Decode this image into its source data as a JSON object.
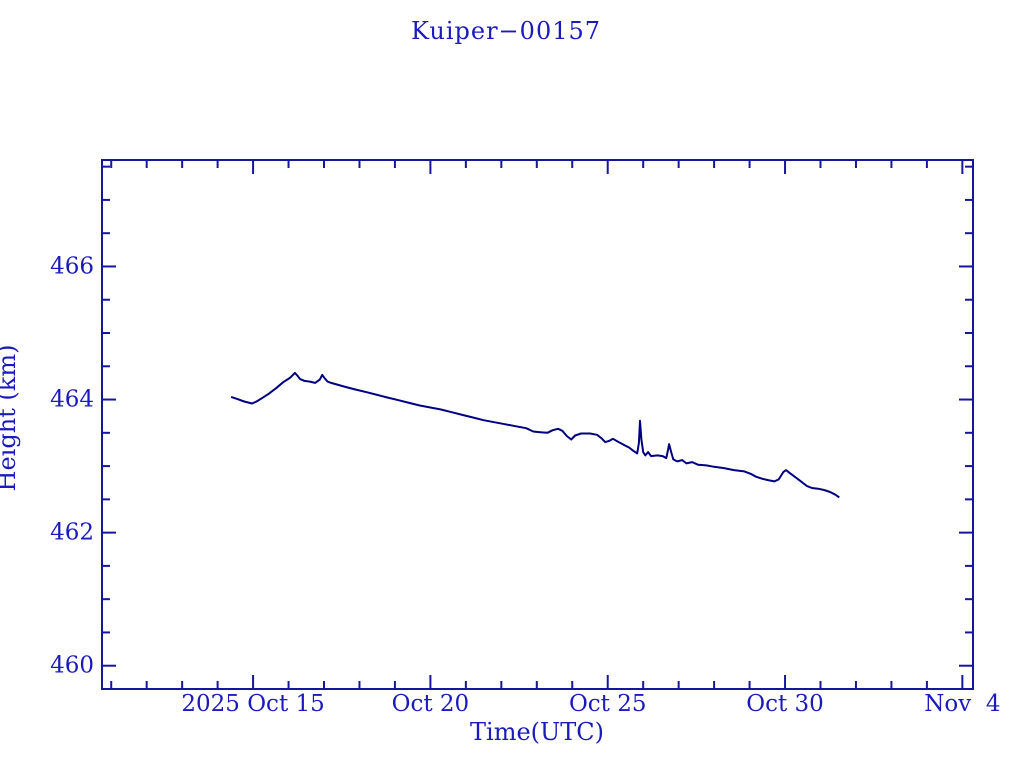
{
  "window": {
    "background_color": "#ffffff"
  },
  "chart_data": {
    "type": "line",
    "title": "Kuiper−00157",
    "xlabel": "Time(UTC)",
    "ylabel": "Height (km)",
    "x_encoding": "October 2025 day number (Nov 4 = 35)",
    "xlim": [
      10.74,
      35.3
    ],
    "ylim": [
      459.65,
      467.6
    ],
    "grid": false,
    "legend": "none",
    "x_major_ticks": [
      {
        "day": 15,
        "label": "2025 Oct 15"
      },
      {
        "day": 20,
        "label": "Oct 20"
      },
      {
        "day": 25,
        "label": "Oct 25"
      },
      {
        "day": 30,
        "label": "Oct 30"
      },
      {
        "day": 35,
        "label": "Nov  4"
      }
    ],
    "x_minor_tick_step_days": 1,
    "y_major_ticks": [
      {
        "value": 466,
        "label": "466"
      },
      {
        "value": 464,
        "label": "464"
      },
      {
        "value": 462,
        "label": "462"
      },
      {
        "value": 460,
        "label": "460"
      }
    ],
    "y_minor_tick_step_km": 0.5,
    "colors": {
      "text": "#1b1bbd",
      "axis": "#16169b",
      "line": "#000080",
      "background": "#ffffff"
    },
    "series": [
      {
        "name": "height",
        "points": [
          [
            14.38,
            464.04
          ],
          [
            14.55,
            464.01
          ],
          [
            14.75,
            463.97
          ],
          [
            14.97,
            463.94
          ],
          [
            15.1,
            463.97
          ],
          [
            15.25,
            464.02
          ],
          [
            15.45,
            464.09
          ],
          [
            15.65,
            464.17
          ],
          [
            15.85,
            464.26
          ],
          [
            16.05,
            464.33
          ],
          [
            16.18,
            464.4
          ],
          [
            16.25,
            464.36
          ],
          [
            16.32,
            464.31
          ],
          [
            16.45,
            464.28
          ],
          [
            16.6,
            464.27
          ],
          [
            16.75,
            464.25
          ],
          [
            16.88,
            464.3
          ],
          [
            16.95,
            464.37
          ],
          [
            17.02,
            464.32
          ],
          [
            17.1,
            464.27
          ],
          [
            17.2,
            464.25
          ],
          [
            17.4,
            464.22
          ],
          [
            17.6,
            464.19
          ],
          [
            17.9,
            464.15
          ],
          [
            18.2,
            464.11
          ],
          [
            18.5,
            464.07
          ],
          [
            18.8,
            464.03
          ],
          [
            19.1,
            463.99
          ],
          [
            19.4,
            463.95
          ],
          [
            19.7,
            463.91
          ],
          [
            20.0,
            463.88
          ],
          [
            20.3,
            463.85
          ],
          [
            20.6,
            463.81
          ],
          [
            20.9,
            463.77
          ],
          [
            21.2,
            463.73
          ],
          [
            21.5,
            463.69
          ],
          [
            21.8,
            463.66
          ],
          [
            22.1,
            463.63
          ],
          [
            22.4,
            463.6
          ],
          [
            22.7,
            463.57
          ],
          [
            22.9,
            463.52
          ],
          [
            23.1,
            463.51
          ],
          [
            23.3,
            463.5
          ],
          [
            23.45,
            463.54
          ],
          [
            23.6,
            463.56
          ],
          [
            23.72,
            463.53
          ],
          [
            23.85,
            463.45
          ],
          [
            23.97,
            463.4
          ],
          [
            24.08,
            463.46
          ],
          [
            24.25,
            463.49
          ],
          [
            24.5,
            463.49
          ],
          [
            24.7,
            463.47
          ],
          [
            24.82,
            463.42
          ],
          [
            24.93,
            463.36
          ],
          [
            25.05,
            463.38
          ],
          [
            25.15,
            463.41
          ],
          [
            25.28,
            463.37
          ],
          [
            25.45,
            463.32
          ],
          [
            25.6,
            463.28
          ],
          [
            25.72,
            463.23
          ],
          [
            25.83,
            463.19
          ],
          [
            25.88,
            463.35
          ],
          [
            25.91,
            463.68
          ],
          [
            25.95,
            463.4
          ],
          [
            26.0,
            463.21
          ],
          [
            26.06,
            463.16
          ],
          [
            26.14,
            463.21
          ],
          [
            26.22,
            463.15
          ],
          [
            26.4,
            463.16
          ],
          [
            26.55,
            463.15
          ],
          [
            26.65,
            463.12
          ],
          [
            26.7,
            463.24
          ],
          [
            26.73,
            463.33
          ],
          [
            26.79,
            463.21
          ],
          [
            26.85,
            463.1
          ],
          [
            26.96,
            463.07
          ],
          [
            27.1,
            463.09
          ],
          [
            27.22,
            463.04
          ],
          [
            27.38,
            463.06
          ],
          [
            27.55,
            463.02
          ],
          [
            27.78,
            463.01
          ],
          [
            28.0,
            462.99
          ],
          [
            28.28,
            462.97
          ],
          [
            28.56,
            462.94
          ],
          [
            28.85,
            462.92
          ],
          [
            29.05,
            462.88
          ],
          [
            29.18,
            462.84
          ],
          [
            29.35,
            462.81
          ],
          [
            29.52,
            462.79
          ],
          [
            29.7,
            462.77
          ],
          [
            29.82,
            462.8
          ],
          [
            29.95,
            462.91
          ],
          [
            30.03,
            462.94
          ],
          [
            30.12,
            462.9
          ],
          [
            30.3,
            462.83
          ],
          [
            30.45,
            462.77
          ],
          [
            30.62,
            462.7
          ],
          [
            30.76,
            462.67
          ],
          [
            30.93,
            462.66
          ],
          [
            31.1,
            462.64
          ],
          [
            31.27,
            462.61
          ],
          [
            31.42,
            462.57
          ],
          [
            31.53,
            462.53
          ]
        ]
      }
    ]
  }
}
